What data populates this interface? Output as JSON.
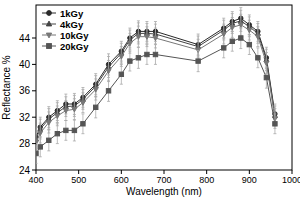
{
  "chart_data": {
    "type": "line",
    "x_label": "Wavelength (nm)",
    "y_label": "Reflectance %",
    "x": [
      400,
      410,
      430,
      450,
      470,
      490,
      510,
      540,
      570,
      600,
      620,
      640,
      660,
      680,
      780,
      840,
      860,
      880,
      900,
      920,
      940,
      960
    ],
    "series": [
      {
        "name": "1kGy",
        "color": "#2a2a2a",
        "marker": "circle",
        "line_style": "solid",
        "values": [
          29,
          30.5,
          32,
          33,
          34,
          34,
          35,
          37,
          40,
          42,
          44,
          45,
          45,
          45,
          43,
          45.5,
          46.5,
          47,
          46,
          45,
          41,
          32.5
        ],
        "errors": [
          1.5,
          1.5,
          1.6,
          1.5,
          1.5,
          1.6,
          1.5,
          1.6,
          1.6,
          1.5,
          1.5,
          1.6,
          1.5,
          1.5,
          1.6,
          1.5,
          1.5,
          1.6,
          1.5,
          1.5,
          1.6,
          1.5
        ]
      },
      {
        "name": "4kGy",
        "color": "#444444",
        "marker": "triangle-up",
        "line_style": "solid",
        "values": [
          28.7,
          30.2,
          31.7,
          32.7,
          33.6,
          33.7,
          34.7,
          36.7,
          39.6,
          41.7,
          43.7,
          44.7,
          44.7,
          44.6,
          42.7,
          45.2,
          46.2,
          46.6,
          45.7,
          44.7,
          40.7,
          32.2
        ],
        "errors": [
          1.5,
          1.5,
          1.6,
          1.5,
          1.5,
          1.6,
          1.5,
          1.6,
          1.6,
          1.5,
          1.5,
          1.6,
          1.5,
          1.5,
          1.6,
          1.5,
          1.5,
          1.6,
          1.5,
          1.5,
          1.6,
          1.5
        ]
      },
      {
        "name": "10kGy",
        "color": "#777777",
        "marker": "triangle-down",
        "line_style": "solid",
        "values": [
          28.2,
          29.6,
          31.2,
          32.2,
          33,
          33.2,
          34.2,
          36.2,
          39,
          41.2,
          43.2,
          44.2,
          44.2,
          44,
          42.2,
          44.6,
          45.6,
          46,
          45.2,
          44.2,
          40.2,
          31.8
        ],
        "errors": [
          1.5,
          1.5,
          1.6,
          1.5,
          1.5,
          1.6,
          1.5,
          1.6,
          1.6,
          1.5,
          1.5,
          1.6,
          1.5,
          1.5,
          1.6,
          1.5,
          1.5,
          1.6,
          1.5,
          1.5,
          1.6,
          1.5
        ]
      },
      {
        "name": "20kGy",
        "color": "#555555",
        "marker": "square",
        "line_style": "solid",
        "values": [
          26.5,
          27.5,
          28.5,
          29.5,
          30,
          30,
          31,
          33.5,
          36,
          38.5,
          40.5,
          41,
          41.5,
          41.5,
          40.5,
          42.5,
          43.5,
          44,
          43,
          41,
          38,
          31
        ],
        "errors": [
          1.5,
          1.5,
          1.6,
          1.5,
          1.5,
          1.6,
          1.5,
          1.6,
          1.6,
          1.5,
          1.5,
          1.6,
          1.5,
          1.5,
          1.6,
          1.5,
          1.5,
          1.6,
          1.5,
          1.5,
          1.6,
          1.5
        ]
      }
    ],
    "xlim": [
      400,
      1000
    ],
    "xticks": [
      400,
      500,
      600,
      700,
      800,
      900,
      1000
    ],
    "ylim": [
      24,
      49
    ],
    "yticks": [
      24,
      28,
      32,
      36,
      40,
      44
    ],
    "grid": false,
    "legend": "upper left"
  }
}
